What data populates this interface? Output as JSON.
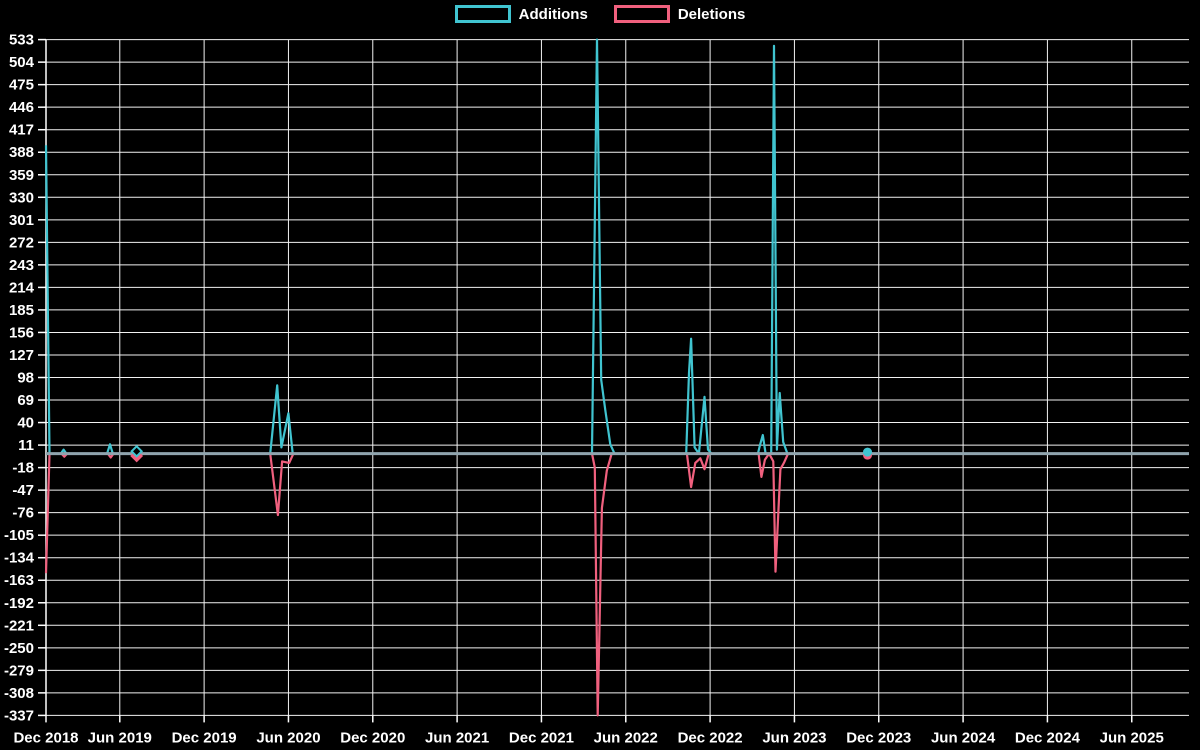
{
  "legend": {
    "items": [
      {
        "id": "additions",
        "label": "Additions",
        "color": "#40c4d0"
      },
      {
        "id": "deletions",
        "label": "Deletions",
        "color": "#f0607e"
      }
    ]
  },
  "colors": {
    "background": "#000000",
    "gridline": "#f2f2f2",
    "axis_text": "#ffffff",
    "zero_line": "#90a4ae",
    "additions": "#40c4d0",
    "deletions": "#f0607e"
  },
  "chart_data": {
    "type": "line",
    "title": "",
    "xlabel": "",
    "ylabel": "",
    "grid": true,
    "legend_position": "top-center",
    "x_axis": {
      "tick_labels": [
        "Dec 2018",
        "Jun 2019",
        "Dec 2019",
        "Jun 2020",
        "Dec 2020",
        "Jun 2021",
        "Dec 2021",
        "Jun 2022",
        "Dec 2022",
        "Jun 2023",
        "Dec 2023",
        "Jun 2024",
        "Dec 2024",
        "Jun 2025"
      ],
      "tick_months": [
        0,
        6,
        12,
        18,
        24,
        30,
        36,
        42,
        48,
        54,
        60,
        66,
        72,
        78
      ]
    },
    "y_axis": {
      "tick_values": [
        533,
        504,
        475,
        446,
        417,
        388,
        359,
        330,
        301,
        272,
        243,
        214,
        185,
        156,
        127,
        98,
        69,
        40,
        11,
        -18,
        -47,
        -76,
        -105,
        -134,
        -163,
        -192,
        -221,
        -250,
        -279,
        -308,
        -337
      ],
      "min": -337,
      "max": 533,
      "step": 29
    },
    "series": [
      {
        "name": "Additions",
        "color": "#40c4d0",
        "points": [
          [
            0.75,
            397
          ],
          [
            1.0,
            0
          ],
          [
            1.8,
            0
          ],
          [
            2.0,
            5
          ],
          [
            2.2,
            0
          ],
          [
            5.1,
            0
          ],
          [
            5.3,
            12
          ],
          [
            5.5,
            0
          ],
          [
            16.7,
            0
          ],
          [
            17.2,
            88
          ],
          [
            17.5,
            8
          ],
          [
            18.0,
            52
          ],
          [
            18.3,
            0
          ],
          [
            39.6,
            0
          ],
          [
            39.95,
            533
          ],
          [
            40.1,
            312
          ],
          [
            40.25,
            95
          ],
          [
            40.55,
            55
          ],
          [
            40.9,
            12
          ],
          [
            41.2,
            0
          ],
          [
            46.3,
            0
          ],
          [
            46.5,
            104
          ],
          [
            46.65,
            148
          ],
          [
            46.9,
            8
          ],
          [
            47.2,
            0
          ],
          [
            47.6,
            73
          ],
          [
            47.85,
            5
          ],
          [
            48.1,
            0
          ],
          [
            51.4,
            0
          ],
          [
            51.55,
            11
          ],
          [
            51.75,
            24
          ],
          [
            51.95,
            0
          ],
          [
            52.35,
            0
          ],
          [
            52.55,
            525
          ],
          [
            52.75,
            5
          ],
          [
            52.95,
            78
          ],
          [
            53.2,
            15
          ],
          [
            53.5,
            0
          ]
        ]
      },
      {
        "name": "Deletions",
        "color": "#f0607e",
        "points": [
          [
            0.75,
            -154
          ],
          [
            1.0,
            0
          ],
          [
            1.85,
            0
          ],
          [
            2.05,
            -4
          ],
          [
            2.25,
            0
          ],
          [
            5.15,
            0
          ],
          [
            5.35,
            -5
          ],
          [
            5.55,
            0
          ],
          [
            16.7,
            0
          ],
          [
            17.25,
            -79
          ],
          [
            17.55,
            -10
          ],
          [
            18.05,
            -12
          ],
          [
            18.35,
            0
          ],
          [
            39.6,
            0
          ],
          [
            39.8,
            -18
          ],
          [
            40.0,
            -337
          ],
          [
            40.3,
            -70
          ],
          [
            40.65,
            -22
          ],
          [
            41.0,
            0
          ],
          [
            46.35,
            0
          ],
          [
            46.65,
            -43
          ],
          [
            46.95,
            -12
          ],
          [
            47.3,
            -6
          ],
          [
            47.6,
            -20
          ],
          [
            47.9,
            0
          ],
          [
            51.45,
            0
          ],
          [
            51.65,
            -30
          ],
          [
            51.9,
            -8
          ],
          [
            52.2,
            0
          ],
          [
            52.5,
            -10
          ],
          [
            52.65,
            -152
          ],
          [
            53.0,
            -20
          ],
          [
            53.25,
            -12
          ],
          [
            53.55,
            0
          ]
        ]
      }
    ],
    "isolated_markers": [
      {
        "shape": "diamond",
        "month": 7.2,
        "additions": 3,
        "deletions": -3
      },
      {
        "shape": "circle",
        "month": 59.2,
        "additions": 2,
        "deletions": -2
      }
    ]
  }
}
